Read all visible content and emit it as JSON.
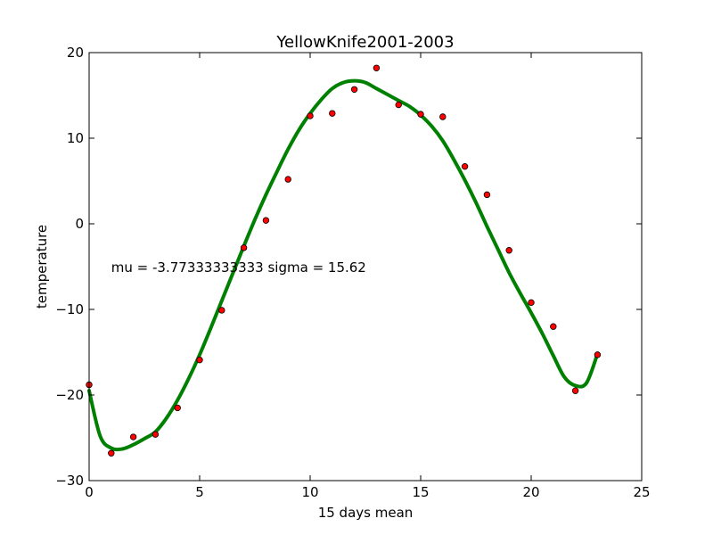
{
  "chart_data": {
    "type": "scatter",
    "title": "YellowKnife2001-2003",
    "xlabel": "15 days mean",
    "ylabel": "temperature",
    "xlim": [
      0,
      25
    ],
    "ylim": [
      -30,
      20
    ],
    "xticks": [
      0,
      5,
      10,
      15,
      20,
      25
    ],
    "yticks": [
      -30,
      -20,
      -10,
      0,
      10,
      20
    ],
    "xtick_labels": [
      "0",
      "5",
      "10",
      "15",
      "20",
      "25"
    ],
    "ytick_labels": [
      "−30",
      "−20",
      "−10",
      "0",
      "10",
      "20"
    ],
    "grid": false,
    "annotation": {
      "text": "mu = -3.77333333333 sigma = 15.62",
      "x": 1,
      "y": -5.6
    },
    "series": [
      {
        "kind": "scatter",
        "color": "#ff0000",
        "x": [
          0,
          1,
          2,
          3,
          4,
          5,
          6,
          7,
          8,
          9,
          10,
          11,
          12,
          13,
          14,
          15,
          16,
          17,
          18,
          19,
          20,
          21,
          22,
          23
        ],
        "y": [
          -18.8,
          -26.8,
          -24.9,
          -24.6,
          -21.5,
          -15.9,
          -10.1,
          -2.8,
          0.4,
          5.2,
          12.6,
          12.9,
          15.7,
          18.2,
          13.9,
          12.8,
          12.5,
          6.7,
          3.4,
          -3.1,
          -9.2,
          -12.0,
          -19.5,
          -15.3
        ]
      },
      {
        "kind": "line",
        "color": "#008000",
        "x": [
          0,
          0.5,
          1,
          1.5,
          2,
          2.5,
          3,
          3.5,
          4,
          4.5,
          5,
          5.5,
          6,
          6.5,
          7,
          7.5,
          8,
          8.5,
          9,
          9.5,
          10,
          10.5,
          11,
          11.5,
          12,
          12.5,
          13,
          13.5,
          14,
          14.5,
          15,
          15.5,
          16,
          16.5,
          17,
          17.5,
          18,
          18.5,
          19,
          19.5,
          20,
          20.5,
          21,
          21.5,
          22,
          22.5,
          23
        ],
        "y": [
          -19.5,
          -24.8,
          -26.2,
          -26.3,
          -25.8,
          -25.1,
          -24.3,
          -22.7,
          -20.6,
          -18.1,
          -15.3,
          -12.2,
          -9.0,
          -5.8,
          -2.6,
          0.5,
          3.4,
          6.1,
          8.7,
          11.0,
          12.9,
          14.5,
          15.8,
          16.5,
          16.7,
          16.5,
          15.8,
          15.1,
          14.4,
          13.7,
          12.7,
          11.4,
          9.7,
          7.5,
          5.1,
          2.5,
          -0.3,
          -3.0,
          -5.7,
          -8.1,
          -10.4,
          -12.8,
          -15.4,
          -17.9,
          -18.9,
          -18.6,
          -15.2
        ]
      }
    ]
  }
}
